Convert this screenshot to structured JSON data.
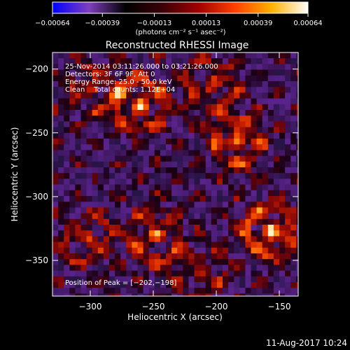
{
  "chart_data": {
    "type": "heatmap",
    "title": "Reconstructed RHESSI Image",
    "xlabel": "Heliocentric X (arcsec)",
    "ylabel": "Heliocentric Y (arcsec)",
    "xlim": [
      -330,
      -135
    ],
    "ylim": [
      -378,
      -187
    ],
    "x_ticks": [
      -300,
      -250,
      -200,
      -150
    ],
    "x_tick_labels": [
      "−300",
      "−250",
      "−200",
      "−150"
    ],
    "y_ticks": [
      -200,
      -250,
      -300,
      -350
    ],
    "y_tick_labels": [
      "−200",
      "−250",
      "−300",
      "−350"
    ],
    "colorbar": {
      "range": [
        -0.00064,
        0.00064
      ],
      "tick_values": [
        -0.00064,
        -0.00039,
        -0.00013,
        0.00013,
        0.00039,
        0.00064
      ],
      "tick_labels": [
        "−0.00064",
        "−0.00039",
        "−0.00013",
        "0.00013",
        "0.00039",
        "0.00064"
      ],
      "units_label": "(photons cm⁻² s⁻¹ asec⁻²)",
      "colors": [
        "#0000ff",
        "#7f3fbf",
        "#000000",
        "#3a0008",
        "#a00000",
        "#ff4000",
        "#ffb000",
        "#ffffff"
      ]
    },
    "info_lines": [
      "25-Nov-2014 03:11:26.000 to 03:21:26.000",
      "Detectors: 3F 6F 9F, Att 0",
      "Energy Range: 25.0 - 50.0 keV",
      "Clean    Total counts: 1.12E+04"
    ],
    "peak_label": "Position of Peak = [−202,−198]",
    "peak": [
      -202,
      -198
    ],
    "sources": [
      {
        "x": -262,
        "y": -225,
        "amp": 0.9
      },
      {
        "x": -185,
        "y": -255,
        "amp": 0.85
      },
      {
        "x": -160,
        "y": -325,
        "amp": 1.0
      },
      {
        "x": -250,
        "y": -330,
        "amp": 0.75
      },
      {
        "x": -305,
        "y": -330,
        "amp": 0.6
      },
      {
        "x": -300,
        "y": -215,
        "amp": 0.55
      },
      {
        "x": -205,
        "y": -210,
        "amp": 0.6
      },
      {
        "x": -215,
        "y": -360,
        "amp": 0.5
      }
    ]
  },
  "footer": {
    "timestamp": "11-Aug-2017 10:24"
  }
}
